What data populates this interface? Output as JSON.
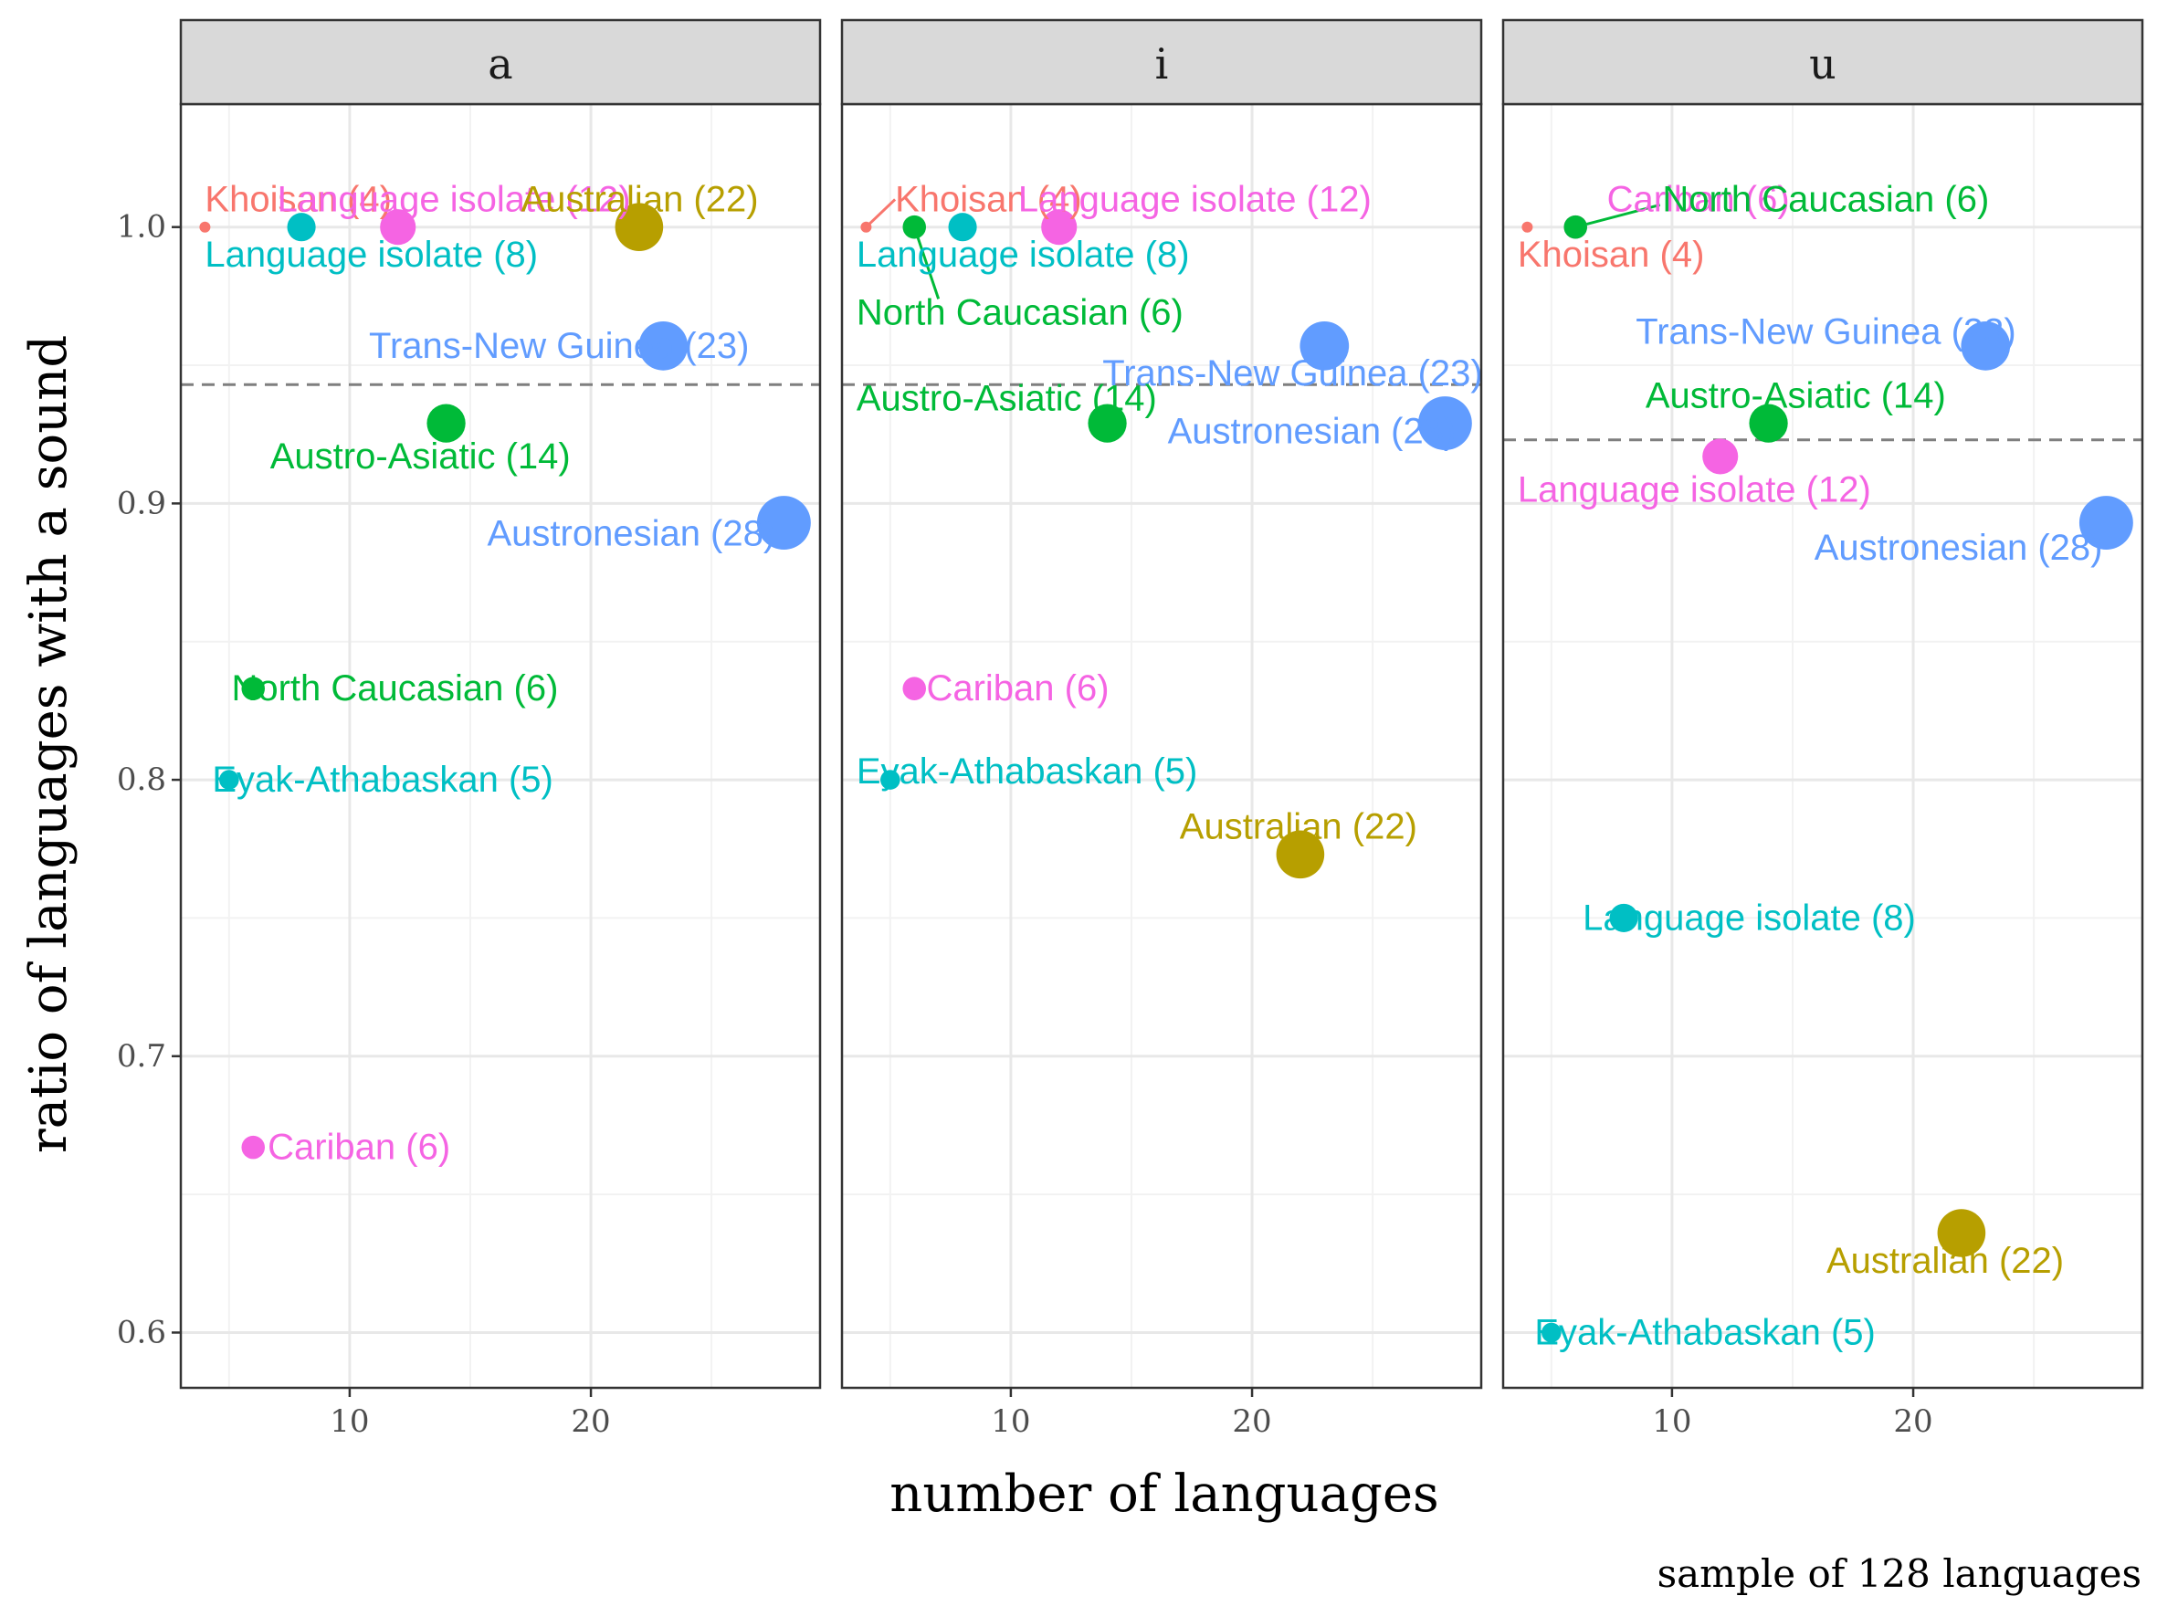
{
  "chart_data": {
    "type": "scatter",
    "facets": [
      "a",
      "i",
      "u"
    ],
    "xlabel": "number of languages",
    "ylabel": "ratio of languages with a sound",
    "caption": "sample of  128  languages",
    "xlim": [
      3,
      29.5
    ],
    "ylim": [
      0.58,
      1.0445
    ],
    "xticks": [
      10,
      20
    ],
    "yticks": [
      0.6,
      0.7,
      0.8,
      0.9,
      1.0
    ],
    "ytick_labels": [
      "0.6",
      "0.7",
      "0.8",
      "0.9",
      "1.0"
    ],
    "grid": true,
    "families": {
      "Khoisan": "#F8766D",
      "Australian": "#B79F00",
      "Austro-Asiatic": "#00BA38",
      "North Caucasian": "#00BA38",
      "Eyak-Athabaskan": "#00BFC4",
      "Language isolate (8)": "#00BFC4",
      "Trans-New Guinea": "#619CFF",
      "Austronesian": "#619CFF",
      "Cariban": "#F564E3",
      "Language isolate (12)": "#F564E3"
    },
    "panels": [
      {
        "facet": "a",
        "reference_line": 0.943,
        "points": [
          {
            "label": "Khoisan (4)",
            "x": 4,
            "y": 1.0,
            "color": "#F8766D",
            "lx": 4,
            "ly": 1.01,
            "anchor": "start"
          },
          {
            "label": "Language isolate (8)",
            "x": 8,
            "y": 1.0,
            "color": "#00BFC4",
            "lx": 4,
            "ly": 0.99,
            "anchor": "start"
          },
          {
            "label": "Language isolate (12)",
            "x": 12,
            "y": 1.0,
            "color": "#F564E3",
            "lx": 7,
            "ly": 1.01,
            "anchor": "start"
          },
          {
            "label": "Australian (22)",
            "x": 22,
            "y": 1.0,
            "color": "#B79F00",
            "lx": 17.1,
            "ly": 1.01,
            "anchor": "start"
          },
          {
            "label": "Trans-New Guinea (23)",
            "x": 23,
            "y": 0.957,
            "color": "#619CFF",
            "lx": 10.8,
            "ly": 0.957,
            "anchor": "start"
          },
          {
            "label": "Austro-Asiatic (14)",
            "x": 14,
            "y": 0.929,
            "color": "#00BA38",
            "lx": 6.7,
            "ly": 0.917,
            "anchor": "start"
          },
          {
            "label": "Austronesian (28)",
            "x": 28,
            "y": 0.893,
            "color": "#619CFF",
            "lx": 15.7,
            "ly": 0.889,
            "anchor": "start"
          },
          {
            "label": "North Caucasian (6)",
            "x": 6,
            "y": 0.833,
            "color": "#00BA38",
            "lx": 5.1,
            "ly": 0.833,
            "anchor": "start"
          },
          {
            "label": "Eyak-Athabaskan (5)",
            "x": 5,
            "y": 0.8,
            "color": "#00BFC4",
            "lx": 4.3,
            "ly": 0.8,
            "anchor": "start"
          },
          {
            "label": "Cariban (6)",
            "x": 6,
            "y": 0.667,
            "color": "#F564E3",
            "lx": 6.6,
            "ly": 0.667,
            "anchor": "start"
          }
        ]
      },
      {
        "facet": "i",
        "reference_line": 0.943,
        "points": [
          {
            "label": "Khoisan (4)",
            "x": 4,
            "y": 1.0,
            "color": "#F8766D",
            "lx": 5.2,
            "ly": 1.01,
            "anchor": "start",
            "leader": true
          },
          {
            "label": "Language isolate (12)",
            "x": 12,
            "y": 1.0,
            "color": "#F564E3",
            "lx": 10.3,
            "ly": 1.01,
            "anchor": "start"
          },
          {
            "label": "Language isolate (8)",
            "x": 8,
            "y": 1.0,
            "color": "#00BFC4",
            "lx": 3.6,
            "ly": 0.99,
            "anchor": "start"
          },
          {
            "label": "North Caucasian (6)",
            "x": 6,
            "y": 1.0,
            "color": "#00BA38",
            "lx": 3.6,
            "ly": 0.969,
            "anchor": "start",
            "leader": true,
            "leader_to": [
              7,
              0.974
            ]
          },
          {
            "label": "Trans-New Guinea (23)",
            "x": 23,
            "y": 0.957,
            "color": "#619CFF",
            "lx": 13.8,
            "ly": 0.947,
            "anchor": "start"
          },
          {
            "label": "Austro-Asiatic (14)",
            "x": 14,
            "y": 0.929,
            "color": "#00BA38",
            "lx": 3.6,
            "ly": 0.938,
            "anchor": "start"
          },
          {
            "label": "Austronesian (28)",
            "x": 28,
            "y": 0.929,
            "color": "#619CFF",
            "lx": 16.5,
            "ly": 0.926,
            "anchor": "start"
          },
          {
            "label": "Cariban (6)",
            "x": 6,
            "y": 0.833,
            "color": "#F564E3",
            "lx": 6.5,
            "ly": 0.833,
            "anchor": "start"
          },
          {
            "label": "Eyak-Athabaskan (5)",
            "x": 5,
            "y": 0.8,
            "color": "#00BFC4",
            "lx": 3.6,
            "ly": 0.803,
            "anchor": "start"
          },
          {
            "label": "Australian (22)",
            "x": 22,
            "y": 0.773,
            "color": "#B79F00",
            "lx": 17.0,
            "ly": 0.783,
            "anchor": "start"
          }
        ]
      },
      {
        "facet": "u",
        "reference_line": 0.923,
        "points": [
          {
            "label": "Cariban (6)",
            "x": 6,
            "y": 1.0,
            "color": "#F564E3",
            "lx": 7.3,
            "ly": 1.01,
            "anchor": "start"
          },
          {
            "label": "North Caucasian (6)",
            "x": 6,
            "y": 1.0,
            "color": "#00BA38",
            "lx": 9.6,
            "ly": 1.01,
            "anchor": "start",
            "leader": true,
            "leader_to": [
              9.5,
              1.008
            ]
          },
          {
            "label": "Khoisan (4)",
            "x": 4,
            "y": 1.0,
            "color": "#F8766D",
            "lx": 3.6,
            "ly": 0.99,
            "anchor": "start"
          },
          {
            "label": "Trans-New Guinea (23)",
            "x": 23,
            "y": 0.957,
            "color": "#619CFF",
            "lx": 8.5,
            "ly": 0.962,
            "anchor": "start"
          },
          {
            "label": "Austro-Asiatic (14)",
            "x": 14,
            "y": 0.929,
            "color": "#00BA38",
            "lx": 8.9,
            "ly": 0.939,
            "anchor": "start"
          },
          {
            "label": "Language isolate (12)",
            "x": 12,
            "y": 0.917,
            "color": "#F564E3",
            "lx": 3.6,
            "ly": 0.905,
            "anchor": "start"
          },
          {
            "label": "Austronesian (28)",
            "x": 28,
            "y": 0.893,
            "color": "#619CFF",
            "lx": 15.9,
            "ly": 0.884,
            "anchor": "start"
          },
          {
            "label": "Language isolate (8)",
            "x": 8,
            "y": 0.75,
            "color": "#00BFC4",
            "lx": 6.3,
            "ly": 0.75,
            "anchor": "start"
          },
          {
            "label": "Australian (22)",
            "x": 22,
            "y": 0.636,
            "color": "#B79F00",
            "lx": 16.4,
            "ly": 0.626,
            "anchor": "start"
          },
          {
            "label": "Eyak-Athabaskan (5)",
            "x": 5,
            "y": 0.6,
            "color": "#00BFC4",
            "lx": 4.3,
            "ly": 0.6,
            "anchor": "start"
          }
        ]
      }
    ]
  }
}
